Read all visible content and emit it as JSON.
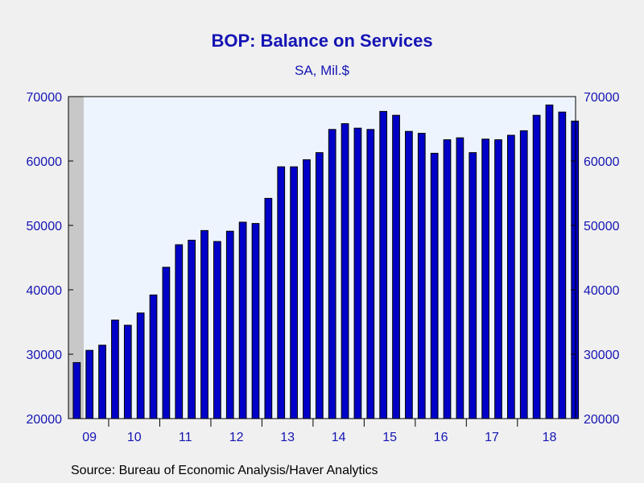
{
  "chart_data": {
    "type": "bar",
    "title": "BOP: Balance on Services",
    "subtitle": "SA, Mil.$",
    "xlabel": "",
    "ylabel": "",
    "ylim": [
      20000,
      70000
    ],
    "yticks": [
      20000,
      30000,
      40000,
      50000,
      60000,
      70000
    ],
    "ytick_labels": [
      "20000",
      "30000",
      "40000",
      "50000",
      "60000",
      "70000"
    ],
    "xtick_labels": [
      "09",
      "10",
      "11",
      "12",
      "13",
      "14",
      "15",
      "16",
      "17",
      "18"
    ],
    "grid": false,
    "recession_shading": true,
    "values": [
      28700,
      30600,
      31400,
      35300,
      34500,
      36400,
      39200,
      43500,
      47000,
      47700,
      49200,
      47500,
      49100,
      50500,
      50300,
      54200,
      59100,
      59100,
      60200,
      61300,
      64900,
      65800,
      65100,
      64900,
      67700,
      67100,
      64600,
      64300,
      61200,
      63300,
      63600,
      61300,
      63400,
      63300,
      64000,
      64700,
      67100,
      68700,
      67600,
      66200
    ],
    "colors": {
      "bar": "#0000c8",
      "text": "#1414b4",
      "plot_bg": "#eef4fd",
      "recession": "#c8c8c8"
    }
  },
  "source": "Source:  Bureau of Economic Analysis/Haver Analytics"
}
